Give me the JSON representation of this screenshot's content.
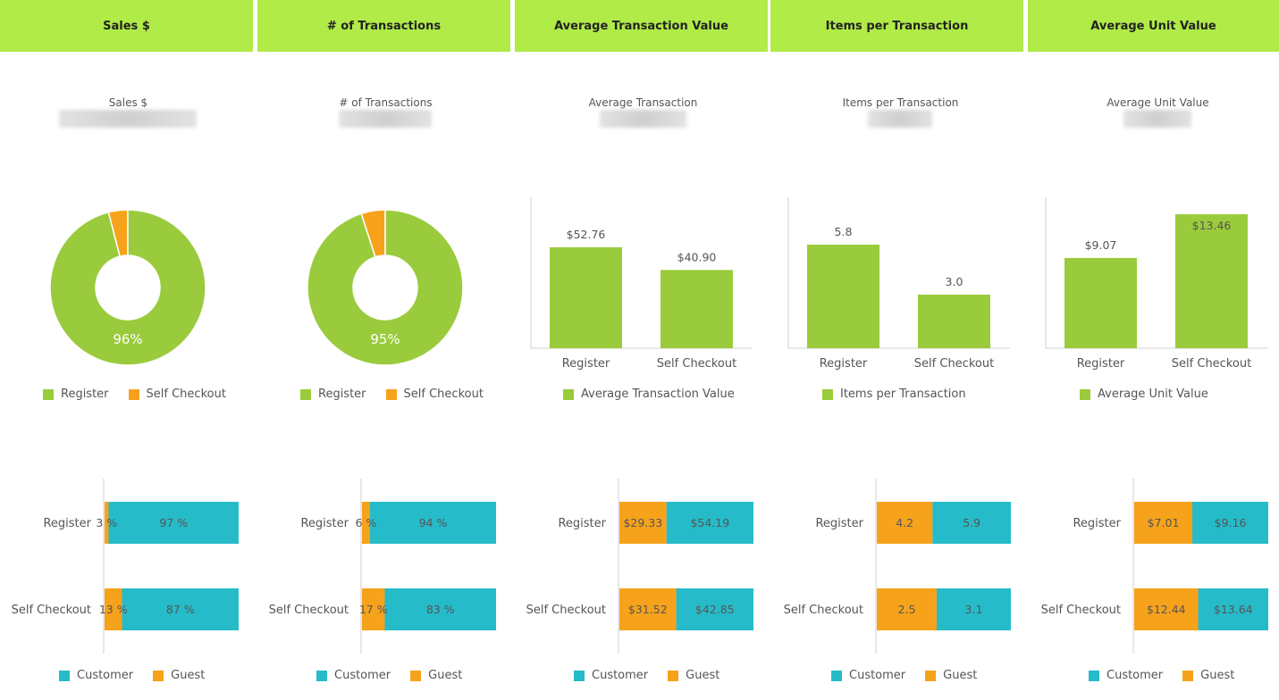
{
  "colors": {
    "header": "#b0eb47",
    "green": "#9acb3c",
    "orange": "#f7a21b",
    "teal": "#26bbc9",
    "axis": "#cfcfcf"
  },
  "panels": [
    {
      "header": "Sales $",
      "kpi_label": "Sales $",
      "chart_data": {
        "type": "pie",
        "slices": [
          {
            "label": "Register",
            "value": 96
          },
          {
            "label": "Self Checkout",
            "value": 4
          }
        ],
        "center_label": "96%"
      },
      "legend": [
        "Register",
        "Self Checkout"
      ],
      "stacked_data": {
        "type": "bar",
        "categories": [
          "Register",
          "Self Checkout"
        ],
        "series": [
          {
            "name": "Guest",
            "values": [
              3,
              13
            ],
            "labels": [
              "3 %",
              "13 %"
            ]
          },
          {
            "name": "Customer",
            "values": [
              97,
              87
            ],
            "labels": [
              "97 %",
              "87 %"
            ]
          }
        ]
      },
      "stacked_legend": [
        "Customer",
        "Guest"
      ]
    },
    {
      "header": "# of Transactions",
      "kpi_label": "# of Transactions",
      "chart_data": {
        "type": "pie",
        "slices": [
          {
            "label": "Register",
            "value": 95
          },
          {
            "label": "Self Checkout",
            "value": 5
          }
        ],
        "center_label": "95%"
      },
      "legend": [
        "Register",
        "Self Checkout"
      ],
      "stacked_data": {
        "type": "bar",
        "categories": [
          "Register",
          "Self Checkout"
        ],
        "series": [
          {
            "name": "Guest",
            "values": [
              6,
              17
            ],
            "labels": [
              "6 %",
              "17 %"
            ]
          },
          {
            "name": "Customer",
            "values": [
              94,
              83
            ],
            "labels": [
              "94 %",
              "83 %"
            ]
          }
        ]
      },
      "stacked_legend": [
        "Customer",
        "Guest"
      ]
    },
    {
      "header": "Average Transaction Value",
      "kpi_label": "Average Transaction",
      "chart_data": {
        "type": "bar",
        "categories": [
          "Register",
          "Self Checkout"
        ],
        "values": [
          52.76,
          40.9
        ],
        "labels": [
          "$52.76",
          "$40.90"
        ],
        "ylim": [
          0,
          70
        ]
      },
      "legend": [
        "Average Transaction Value"
      ],
      "stacked_data": {
        "type": "bar",
        "categories": [
          "Register",
          "Self Checkout"
        ],
        "series": [
          {
            "name": "Guest",
            "values": [
              29.33,
              31.52
            ],
            "labels": [
              "$29.33",
              "$31.52"
            ]
          },
          {
            "name": "Customer",
            "values": [
              54.19,
              42.85
            ],
            "labels": [
              "$54.19",
              "$42.85"
            ]
          }
        ]
      },
      "stacked_legend": [
        "Customer",
        "Guest"
      ]
    },
    {
      "header": "Items per Transaction",
      "kpi_label": "Items per Transaction",
      "chart_data": {
        "type": "bar",
        "categories": [
          "Register",
          "Self Checkout"
        ],
        "values": [
          5.8,
          3.0
        ],
        "labels": [
          "5.8",
          "3.0"
        ],
        "ylim": [
          0,
          7.5
        ]
      },
      "legend": [
        "Items per Transaction"
      ],
      "stacked_data": {
        "type": "bar",
        "categories": [
          "Register",
          "Self Checkout"
        ],
        "series": [
          {
            "name": "Guest",
            "values": [
              4.2,
              2.5
            ],
            "labels": [
              "4.2",
              "2.5"
            ]
          },
          {
            "name": "Customer",
            "values": [
              5.9,
              3.1
            ],
            "labels": [
              "5.9",
              "3.1"
            ]
          }
        ]
      },
      "stacked_legend": [
        "Customer",
        "Guest"
      ]
    },
    {
      "header": "Average Unit Value",
      "kpi_label": "Average Unit Value",
      "chart_data": {
        "type": "bar",
        "categories": [
          "Register",
          "Self Checkout"
        ],
        "values": [
          9.07,
          13.46
        ],
        "labels": [
          "$9.07",
          "$13.46"
        ],
        "ylim": [
          0,
          13.46
        ],
        "label_inside_last": true
      },
      "legend": [
        "Average Unit Value"
      ],
      "stacked_data": {
        "type": "bar",
        "categories": [
          "Register",
          "Self Checkout"
        ],
        "series": [
          {
            "name": "Guest",
            "values": [
              7.01,
              12.44
            ],
            "labels": [
              "$7.01",
              "$12.44"
            ]
          },
          {
            "name": "Customer",
            "values": [
              9.16,
              13.64
            ],
            "labels": [
              "$9.16",
              "$13.64"
            ]
          }
        ]
      },
      "stacked_legend": [
        "Customer",
        "Guest"
      ]
    }
  ]
}
